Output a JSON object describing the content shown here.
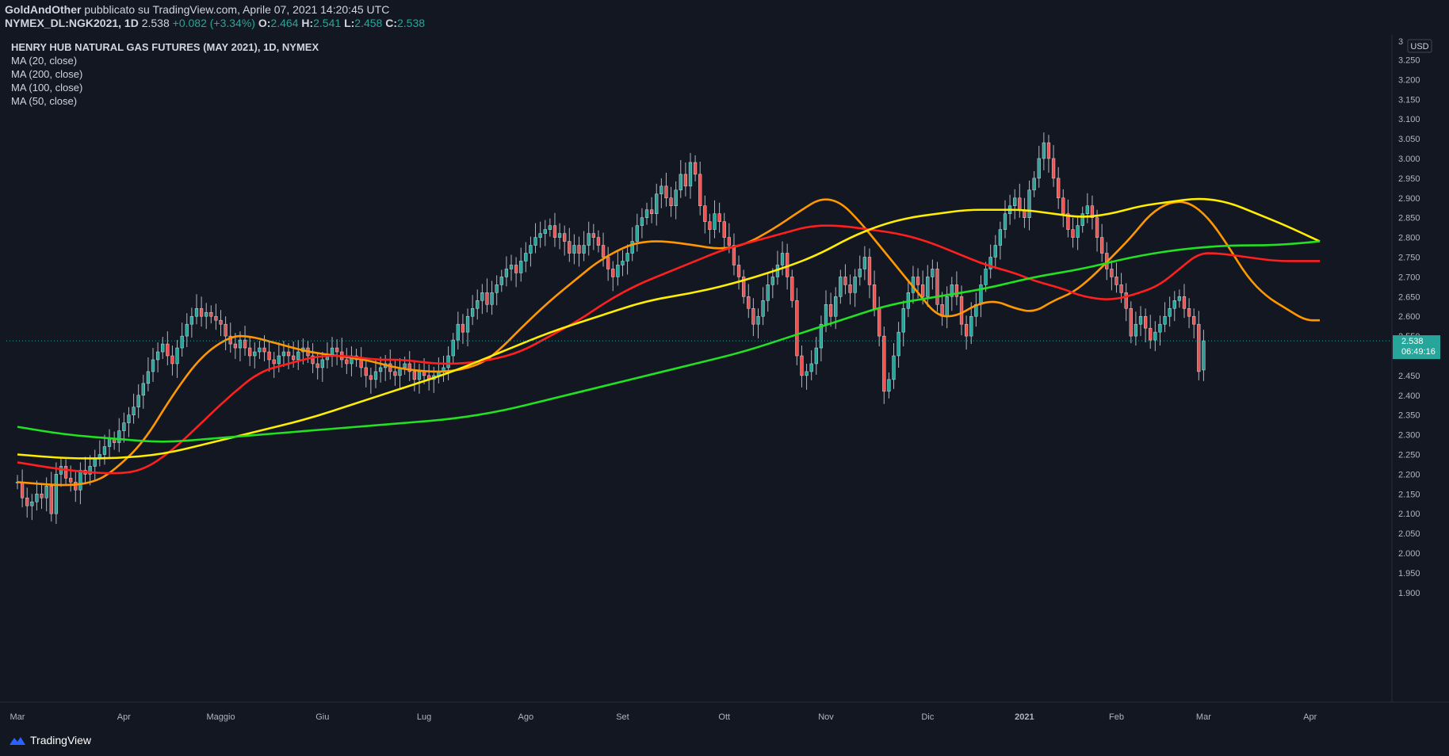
{
  "header": {
    "author": "GoldAndOther",
    "published": "pubblicato su TradingView.com, Aprile 07, 2021 14:20:45 UTC",
    "symbol": "NYMEX_DL:NGK2021, 1D",
    "last": "2.538",
    "change": "+0.082 (+3.34%)",
    "o_label": "O:",
    "o": "2.464",
    "h_label": "H:",
    "h": "2.541",
    "l_label": "L:",
    "l": "2.458",
    "c_label": "C:",
    "c": "2.538"
  },
  "legend": {
    "title": "HENRY HUB NATURAL GAS FUTURES (MAY 2021), 1D, NYMEX",
    "ma20": "MA (20, close)",
    "ma200": "MA (200, close)",
    "ma100": "MA (100, close)",
    "ma50": "MA (50, close)"
  },
  "currency_badge": "USD",
  "price_badge": {
    "price": "2.538",
    "countdown": "06:49:16"
  },
  "brand": "TradingView",
  "colors": {
    "background": "#131722",
    "up": "#26a69a",
    "down": "#ef5350",
    "ma20": "#ff9800",
    "ma50": "#ff1f1f",
    "ma100": "#ffee00",
    "ma200": "#22e022"
  },
  "chart_data": {
    "type": "candlestick",
    "yrange": [
      1.85,
      3.2
    ],
    "yticks": [
      "1.900",
      "1.950",
      "2.000",
      "2.050",
      "2.100",
      "2.150",
      "2.200",
      "2.250",
      "2.300",
      "2.350",
      "2.400",
      "2.450",
      "2.500",
      "2.550",
      "2.600",
      "2.650",
      "2.700",
      "2.750",
      "2.800",
      "2.850",
      "2.900",
      "2.950",
      "3.000",
      "3.050",
      "3.100",
      "3.150",
      "3.200",
      "3.250"
    ],
    "yticks_top": "3",
    "xlabels": [
      {
        "label": "Mar",
        "day": 0
      },
      {
        "label": "Apr",
        "day": 22
      },
      {
        "label": "Maggio",
        "day": 42
      },
      {
        "label": "Giu",
        "day": 63
      },
      {
        "label": "Lug",
        "day": 84
      },
      {
        "label": "Ago",
        "day": 105
      },
      {
        "label": "Set",
        "day": 125
      },
      {
        "label": "Ott",
        "day": 146
      },
      {
        "label": "Nov",
        "day": 167
      },
      {
        "label": "Dic",
        "day": 188
      },
      {
        "label": "2021",
        "day": 208
      },
      {
        "label": "Feb",
        "day": 227
      },
      {
        "label": "Mar",
        "day": 245
      },
      {
        "label": "Apr",
        "day": 267
      }
    ],
    "total_days": 270,
    "close": [
      2.18,
      2.14,
      2.12,
      2.13,
      2.15,
      2.14,
      2.17,
      2.1,
      2.2,
      2.22,
      2.19,
      2.18,
      2.16,
      2.21,
      2.2,
      2.22,
      2.24,
      2.25,
      2.27,
      2.29,
      2.28,
      2.31,
      2.33,
      2.35,
      2.37,
      2.4,
      2.43,
      2.46,
      2.49,
      2.51,
      2.53,
      2.5,
      2.48,
      2.52,
      2.55,
      2.58,
      2.6,
      2.62,
      2.6,
      2.61,
      2.6,
      2.59,
      2.58,
      2.55,
      2.53,
      2.52,
      2.54,
      2.52,
      2.5,
      2.51,
      2.52,
      2.51,
      2.49,
      2.48,
      2.5,
      2.51,
      2.5,
      2.49,
      2.51,
      2.52,
      2.5,
      2.48,
      2.47,
      2.49,
      2.5,
      2.52,
      2.51,
      2.49,
      2.48,
      2.5,
      2.49,
      2.47,
      2.45,
      2.44,
      2.46,
      2.47,
      2.48,
      2.46,
      2.45,
      2.47,
      2.48,
      2.46,
      2.44,
      2.46,
      2.45,
      2.44,
      2.45,
      2.46,
      2.47,
      2.5,
      2.54,
      2.58,
      2.56,
      2.6,
      2.62,
      2.64,
      2.66,
      2.63,
      2.66,
      2.68,
      2.7,
      2.72,
      2.73,
      2.71,
      2.74,
      2.76,
      2.78,
      2.8,
      2.81,
      2.82,
      2.83,
      2.8,
      2.81,
      2.79,
      2.76,
      2.78,
      2.76,
      2.78,
      2.81,
      2.8,
      2.78,
      2.75,
      2.72,
      2.7,
      2.73,
      2.74,
      2.76,
      2.79,
      2.83,
      2.85,
      2.87,
      2.86,
      2.91,
      2.93,
      2.9,
      2.88,
      2.92,
      2.96,
      2.93,
      2.99,
      2.96,
      2.88,
      2.84,
      2.82,
      2.86,
      2.84,
      2.8,
      2.78,
      2.73,
      2.7,
      2.65,
      2.62,
      2.58,
      2.6,
      2.64,
      2.68,
      2.7,
      2.73,
      2.76,
      2.7,
      2.64,
      2.5,
      2.45,
      2.46,
      2.48,
      2.52,
      2.58,
      2.63,
      2.6,
      2.65,
      2.7,
      2.68,
      2.66,
      2.7,
      2.72,
      2.75,
      2.68,
      2.62,
      2.55,
      2.41,
      2.44,
      2.5,
      2.56,
      2.62,
      2.66,
      2.7,
      2.68,
      2.65,
      2.7,
      2.72,
      2.63,
      2.6,
      2.65,
      2.68,
      2.65,
      2.58,
      2.55,
      2.6,
      2.63,
      2.68,
      2.72,
      2.75,
      2.78,
      2.82,
      2.86,
      2.88,
      2.9,
      2.87,
      2.85,
      2.92,
      2.95,
      3.0,
      3.04,
      3.0,
      2.95,
      2.9,
      2.86,
      2.82,
      2.8,
      2.83,
      2.86,
      2.88,
      2.85,
      2.8,
      2.76,
      2.72,
      2.7,
      2.68,
      2.66,
      2.62,
      2.55,
      2.58,
      2.6,
      2.57,
      2.54,
      2.56,
      2.58,
      2.6,
      2.62,
      2.64,
      2.65,
      2.62,
      2.6,
      2.58,
      2.46,
      2.538
    ],
    "series": [
      {
        "name": "MA (20, close)",
        "color": "#ff9800",
        "points": [
          [
            0,
            2.18
          ],
          [
            10,
            2.17
          ],
          [
            16,
            2.18
          ],
          [
            20,
            2.21
          ],
          [
            26,
            2.28
          ],
          [
            32,
            2.4
          ],
          [
            38,
            2.5
          ],
          [
            44,
            2.55
          ],
          [
            48,
            2.55
          ],
          [
            54,
            2.53
          ],
          [
            60,
            2.51
          ],
          [
            66,
            2.5
          ],
          [
            72,
            2.49
          ],
          [
            78,
            2.47
          ],
          [
            84,
            2.46
          ],
          [
            90,
            2.46
          ],
          [
            96,
            2.48
          ],
          [
            100,
            2.52
          ],
          [
            104,
            2.57
          ],
          [
            110,
            2.64
          ],
          [
            116,
            2.7
          ],
          [
            120,
            2.74
          ],
          [
            126,
            2.78
          ],
          [
            130,
            2.79
          ],
          [
            134,
            2.79
          ],
          [
            140,
            2.78
          ],
          [
            145,
            2.77
          ],
          [
            150,
            2.78
          ],
          [
            156,
            2.82
          ],
          [
            162,
            2.87
          ],
          [
            166,
            2.9
          ],
          [
            170,
            2.89
          ],
          [
            174,
            2.84
          ],
          [
            178,
            2.78
          ],
          [
            182,
            2.72
          ],
          [
            186,
            2.66
          ],
          [
            190,
            2.6
          ],
          [
            194,
            2.6
          ],
          [
            198,
            2.63
          ],
          [
            202,
            2.64
          ],
          [
            206,
            2.62
          ],
          [
            210,
            2.61
          ],
          [
            214,
            2.64
          ],
          [
            218,
            2.66
          ],
          [
            222,
            2.7
          ],
          [
            226,
            2.75
          ],
          [
            230,
            2.8
          ],
          [
            234,
            2.86
          ],
          [
            238,
            2.89
          ],
          [
            242,
            2.89
          ],
          [
            246,
            2.85
          ],
          [
            250,
            2.78
          ],
          [
            254,
            2.7
          ],
          [
            258,
            2.65
          ],
          [
            262,
            2.62
          ],
          [
            266,
            2.59
          ],
          [
            269,
            2.59
          ]
        ]
      },
      {
        "name": "MA (50, close)",
        "color": "#ff1f1f",
        "points": [
          [
            0,
            2.23
          ],
          [
            10,
            2.21
          ],
          [
            20,
            2.2
          ],
          [
            26,
            2.21
          ],
          [
            32,
            2.26
          ],
          [
            38,
            2.33
          ],
          [
            44,
            2.4
          ],
          [
            50,
            2.46
          ],
          [
            56,
            2.48
          ],
          [
            62,
            2.5
          ],
          [
            68,
            2.5
          ],
          [
            74,
            2.49
          ],
          [
            80,
            2.49
          ],
          [
            86,
            2.48
          ],
          [
            92,
            2.48
          ],
          [
            98,
            2.49
          ],
          [
            104,
            2.51
          ],
          [
            110,
            2.55
          ],
          [
            116,
            2.59
          ],
          [
            122,
            2.64
          ],
          [
            128,
            2.68
          ],
          [
            134,
            2.71
          ],
          [
            140,
            2.74
          ],
          [
            146,
            2.77
          ],
          [
            152,
            2.79
          ],
          [
            158,
            2.81
          ],
          [
            164,
            2.83
          ],
          [
            170,
            2.83
          ],
          [
            176,
            2.82
          ],
          [
            182,
            2.81
          ],
          [
            188,
            2.79
          ],
          [
            194,
            2.76
          ],
          [
            200,
            2.73
          ],
          [
            206,
            2.71
          ],
          [
            210,
            2.69
          ],
          [
            216,
            2.67
          ],
          [
            220,
            2.65
          ],
          [
            226,
            2.64
          ],
          [
            232,
            2.66
          ],
          [
            236,
            2.68
          ],
          [
            240,
            2.72
          ],
          [
            244,
            2.76
          ],
          [
            248,
            2.76
          ],
          [
            254,
            2.75
          ],
          [
            260,
            2.74
          ],
          [
            266,
            2.74
          ],
          [
            269,
            2.74
          ]
        ]
      },
      {
        "name": "MA (100, close)",
        "color": "#ffee00",
        "points": [
          [
            0,
            2.25
          ],
          [
            10,
            2.24
          ],
          [
            20,
            2.24
          ],
          [
            30,
            2.25
          ],
          [
            40,
            2.28
          ],
          [
            50,
            2.31
          ],
          [
            60,
            2.34
          ],
          [
            70,
            2.38
          ],
          [
            80,
            2.42
          ],
          [
            90,
            2.46
          ],
          [
            100,
            2.51
          ],
          [
            110,
            2.56
          ],
          [
            120,
            2.6
          ],
          [
            130,
            2.64
          ],
          [
            140,
            2.66
          ],
          [
            150,
            2.69
          ],
          [
            160,
            2.73
          ],
          [
            166,
            2.76
          ],
          [
            172,
            2.8
          ],
          [
            178,
            2.83
          ],
          [
            184,
            2.85
          ],
          [
            190,
            2.86
          ],
          [
            196,
            2.87
          ],
          [
            202,
            2.87
          ],
          [
            208,
            2.87
          ],
          [
            214,
            2.86
          ],
          [
            220,
            2.85
          ],
          [
            226,
            2.86
          ],
          [
            232,
            2.88
          ],
          [
            238,
            2.89
          ],
          [
            244,
            2.9
          ],
          [
            250,
            2.89
          ],
          [
            256,
            2.86
          ],
          [
            262,
            2.83
          ],
          [
            269,
            2.79
          ]
        ]
      },
      {
        "name": "MA (200, close)",
        "color": "#22e022",
        "points": [
          [
            0,
            2.32
          ],
          [
            10,
            2.3
          ],
          [
            20,
            2.29
          ],
          [
            30,
            2.28
          ],
          [
            40,
            2.29
          ],
          [
            50,
            2.3
          ],
          [
            60,
            2.31
          ],
          [
            70,
            2.32
          ],
          [
            80,
            2.33
          ],
          [
            90,
            2.34
          ],
          [
            100,
            2.36
          ],
          [
            110,
            2.39
          ],
          [
            120,
            2.42
          ],
          [
            130,
            2.45
          ],
          [
            140,
            2.48
          ],
          [
            150,
            2.51
          ],
          [
            160,
            2.55
          ],
          [
            170,
            2.59
          ],
          [
            180,
            2.63
          ],
          [
            190,
            2.65
          ],
          [
            200,
            2.67
          ],
          [
            210,
            2.7
          ],
          [
            220,
            2.72
          ],
          [
            230,
            2.75
          ],
          [
            240,
            2.77
          ],
          [
            250,
            2.78
          ],
          [
            260,
            2.78
          ],
          [
            269,
            2.79
          ]
        ]
      }
    ]
  }
}
